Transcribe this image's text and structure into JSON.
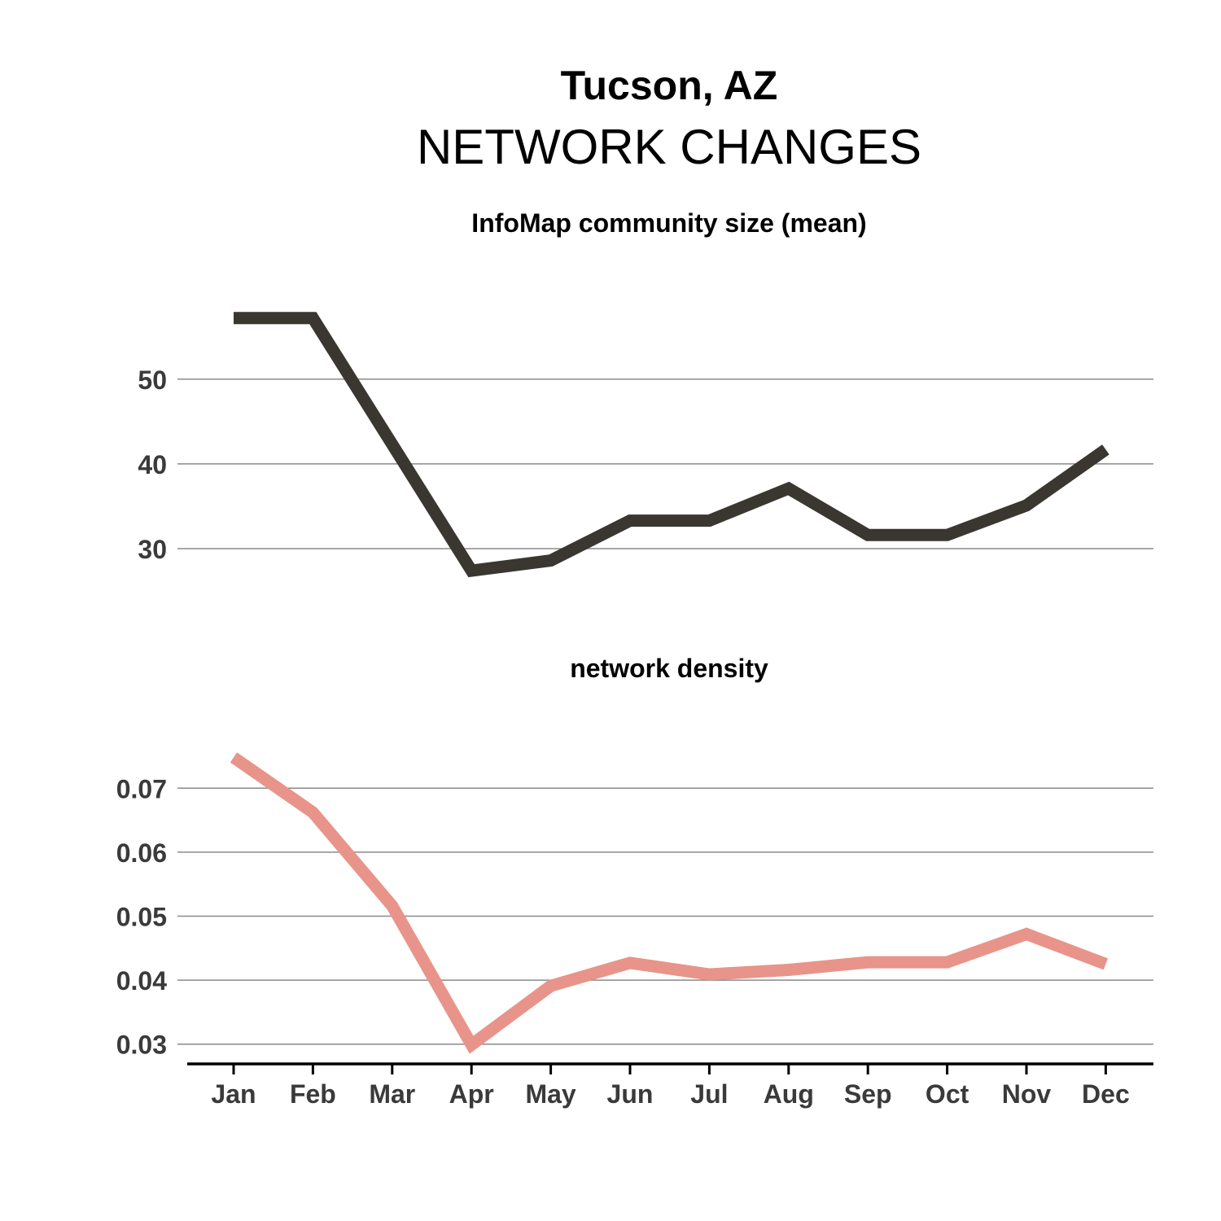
{
  "header": {
    "title": "Tucson, AZ",
    "subtitle": "NETWORK CHANGES"
  },
  "chart_data": [
    {
      "type": "line",
      "title": "InfoMap community size (mean)",
      "categories": [
        "Jan",
        "Feb",
        "Mar",
        "Apr",
        "May",
        "Jun",
        "Jul",
        "Aug",
        "Sep",
        "Oct",
        "Nov",
        "Dec"
      ],
      "series": [
        {
          "values": [
            57.2,
            57.2,
            42.3,
            27.4,
            28.6,
            33.3,
            33.3,
            37.1,
            31.6,
            31.6,
            35.1,
            41.7
          ],
          "color": "#3a3731"
        }
      ],
      "yticks": [
        30,
        40,
        50
      ],
      "ylim": [
        22.7,
        64.0
      ],
      "grid": true
    },
    {
      "type": "line",
      "title": "network density",
      "categories": [
        "Jan",
        "Feb",
        "Mar",
        "Apr",
        "May",
        "Jun",
        "Jul",
        "Aug",
        "Sep",
        "Oct",
        "Nov",
        "Dec"
      ],
      "series": [
        {
          "values": [
            0.0748,
            0.0662,
            0.0516,
            0.0299,
            0.0391,
            0.0427,
            0.0409,
            0.0416,
            0.0428,
            0.0428,
            0.0472,
            0.0425
          ],
          "color": "#e8948a"
        }
      ],
      "yticks": [
        "0.03",
        "0.04",
        "0.05",
        "0.06",
        "0.07"
      ],
      "ylim": [
        0.0278,
        0.0825
      ],
      "grid": true
    }
  ]
}
